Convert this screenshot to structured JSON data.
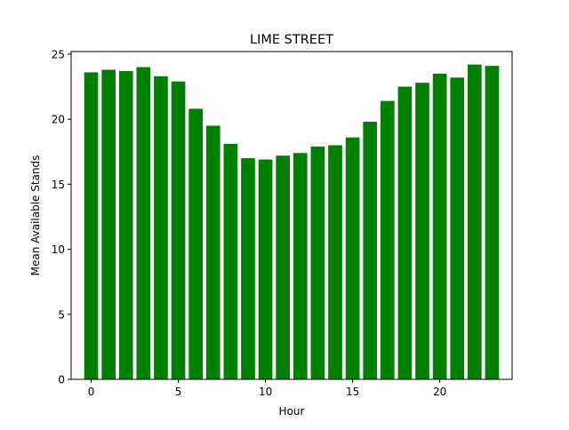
{
  "chart_data": {
    "type": "bar",
    "title": "LIME STREET",
    "xlabel": "Hour",
    "ylabel": "Mean Available Stands",
    "x": [
      0,
      1,
      2,
      3,
      4,
      5,
      6,
      7,
      8,
      9,
      10,
      11,
      12,
      13,
      14,
      15,
      16,
      17,
      18,
      19,
      20,
      21,
      22,
      23
    ],
    "values": [
      23.6,
      23.8,
      23.7,
      24.0,
      23.3,
      22.9,
      20.8,
      19.5,
      18.1,
      17.0,
      16.9,
      17.2,
      17.4,
      17.9,
      18.0,
      18.6,
      19.8,
      21.4,
      22.5,
      22.8,
      23.5,
      23.2,
      24.2,
      24.1
    ],
    "xticks": [
      0,
      5,
      10,
      15,
      20
    ],
    "yticks": [
      0,
      5,
      10,
      15,
      20,
      25
    ],
    "xlim": [
      -1.15,
      24.15
    ],
    "ylim": [
      0,
      25.2
    ],
    "bar_color": "#008000",
    "grid": false,
    "legend": "none"
  }
}
